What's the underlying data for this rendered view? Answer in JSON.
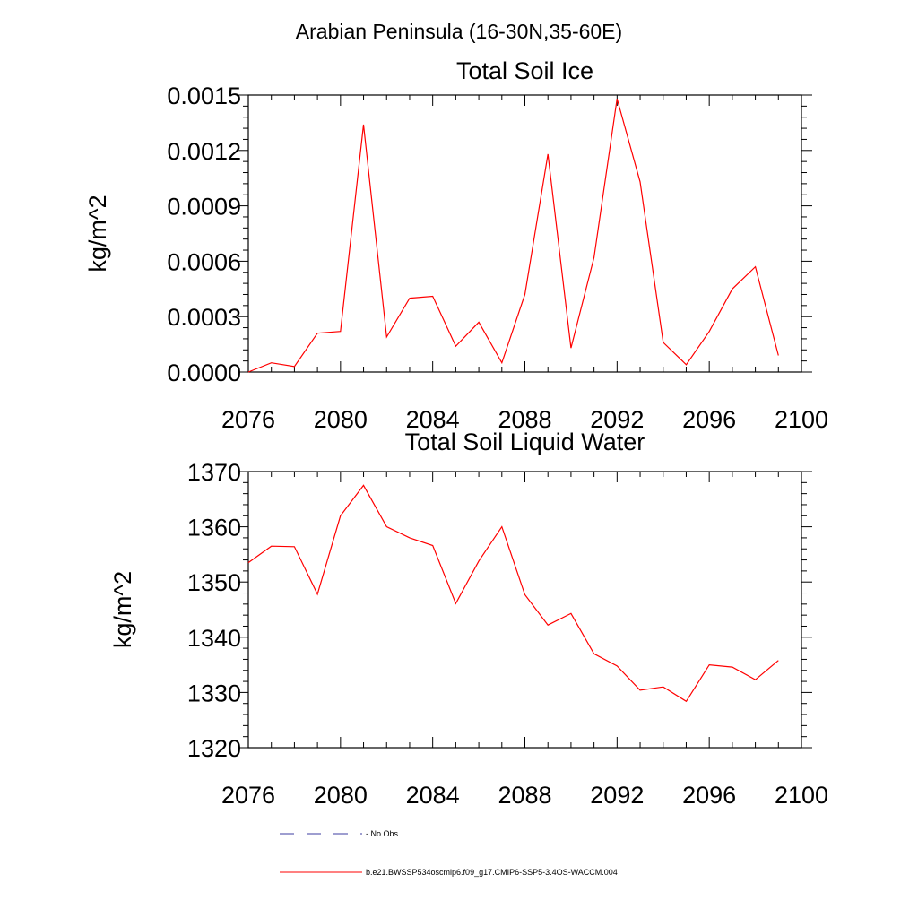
{
  "super_title": "Arabian Peninsula (16-30N,35-60E)",
  "chart_data": [
    {
      "type": "line",
      "title": "Total Soil Ice",
      "xlabel": "",
      "ylabel": "kg/m^2",
      "xlim": [
        2076,
        2100
      ],
      "ylim": [
        0.0,
        0.0015
      ],
      "xticks": [
        2076,
        2080,
        2084,
        2088,
        2092,
        2096,
        2100
      ],
      "yticks": [
        "0.0000",
        "0.0003",
        "0.0006",
        "0.0009",
        "0.0012",
        "0.0015"
      ],
      "yticks_values": [
        0.0,
        0.0003,
        0.0006,
        0.0009,
        0.0012,
        0.0015
      ],
      "series": [
        {
          "name": "b.e21.BWSSP534oscmip6.f09_g17.CMIP6-SSP5-3.4OS-WACCM.004",
          "color": "#ff0000",
          "x": [
            2076,
            2077,
            2078,
            2079,
            2080,
            2081,
            2082,
            2083,
            2084,
            2085,
            2086,
            2087,
            2088,
            2089,
            2090,
            2091,
            2092,
            2093,
            2094,
            2095,
            2096,
            2097,
            2098,
            2099
          ],
          "y": [
            0.0,
            5e-05,
            3e-05,
            0.00021,
            0.00022,
            0.00134,
            0.00019,
            0.0004,
            0.00041,
            0.00014,
            0.00027,
            5e-05,
            0.00042,
            0.00118,
            0.00013,
            0.00062,
            0.00148,
            0.00103,
            0.00016,
            4e-05,
            0.00022,
            0.00045,
            0.00057,
            9e-05
          ]
        }
      ]
    },
    {
      "type": "line",
      "title": "Total Soil Liquid Water",
      "xlabel": "",
      "ylabel": "kg/m^2",
      "xlim": [
        2076,
        2100
      ],
      "ylim": [
        1320,
        1370
      ],
      "xticks": [
        2076,
        2080,
        2084,
        2088,
        2092,
        2096,
        2100
      ],
      "yticks": [
        "1320",
        "1330",
        "1340",
        "1350",
        "1360",
        "1370"
      ],
      "yticks_values": [
        1320,
        1330,
        1340,
        1350,
        1360,
        1370
      ],
      "series": [
        {
          "name": "b.e21.BWSSP534oscmip6.f09_g17.CMIP6-SSP5-3.4OS-WACCM.004",
          "color": "#ff0000",
          "x": [
            2076,
            2077,
            2078,
            2079,
            2080,
            2081,
            2082,
            2083,
            2084,
            2085,
            2086,
            2087,
            2088,
            2089,
            2090,
            2091,
            2092,
            2093,
            2094,
            2095,
            2096,
            2097,
            2098,
            2099
          ],
          "y": [
            1353.5,
            1356.5,
            1356.4,
            1347.8,
            1362.0,
            1367.5,
            1360.0,
            1358.0,
            1356.6,
            1346.1,
            1353.8,
            1360.0,
            1347.7,
            1342.2,
            1344.3,
            1337.0,
            1334.8,
            1330.4,
            1331.0,
            1328.4,
            1335.0,
            1334.6,
            1332.3,
            1335.8
          ]
        }
      ]
    }
  ],
  "legend": {
    "items": [
      {
        "label": "No Obs",
        "color": "#3c3ca0",
        "style": "dashed"
      },
      {
        "label": "b.e21.BWSSP534oscmip6.f09_g17.CMIP6-SSP5-3.4OS-WACCM.004",
        "color": "#ff0000",
        "style": "solid"
      }
    ]
  }
}
